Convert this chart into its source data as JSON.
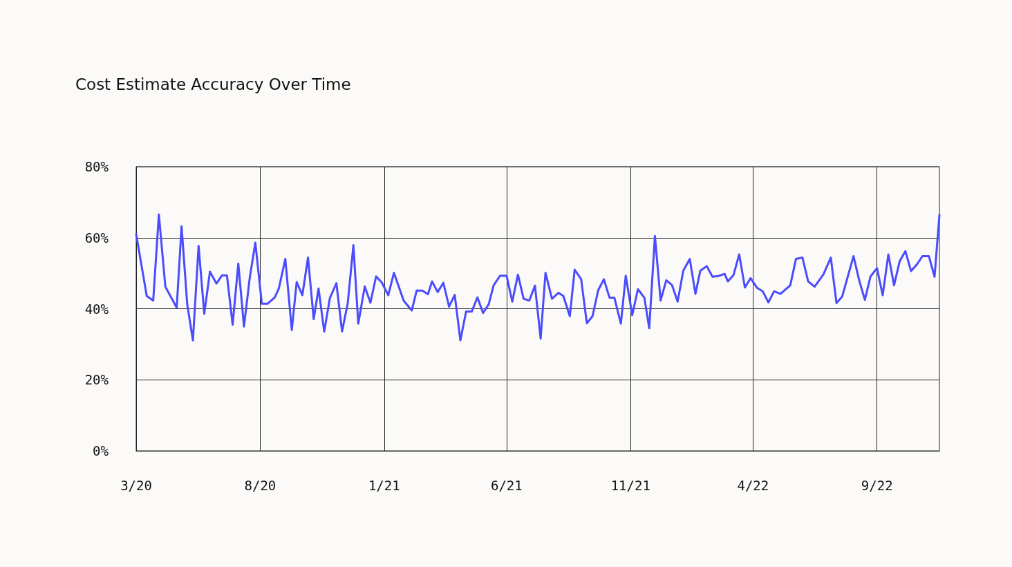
{
  "chart_data": {
    "type": "line",
    "title": "Cost Estimate Accuracy Over Time",
    "x": [
      "2020-03-01",
      "2020-03-14",
      "2020-03-22",
      "2020-03-29",
      "2020-04-06",
      "2020-04-20",
      "2020-04-26",
      "2020-05-03",
      "2020-05-10",
      "2020-05-17",
      "2020-05-24",
      "2020-05-31",
      "2020-06-08",
      "2020-06-15",
      "2020-06-21",
      "2020-06-28",
      "2020-07-05",
      "2020-07-12",
      "2020-07-19",
      "2020-07-26",
      "2020-08-03",
      "2020-08-10",
      "2020-08-19",
      "2020-08-24",
      "2020-09-01",
      "2020-09-09",
      "2020-09-15",
      "2020-09-22",
      "2020-09-29",
      "2020-10-06",
      "2020-10-12",
      "2020-10-19",
      "2020-10-26",
      "2020-11-03",
      "2020-11-10",
      "2020-11-17",
      "2020-11-24",
      "2020-11-30",
      "2020-12-08",
      "2020-12-15",
      "2020-12-22",
      "2020-12-29",
      "2021-01-06",
      "2021-01-13",
      "2021-01-25",
      "2021-02-04",
      "2021-02-10",
      "2021-02-17",
      "2021-02-24",
      "2021-03-01",
      "2021-03-08",
      "2021-03-15",
      "2021-03-22",
      "2021-03-29",
      "2021-04-05",
      "2021-04-12",
      "2021-04-19",
      "2021-04-26",
      "2021-05-03",
      "2021-05-10",
      "2021-05-16",
      "2021-05-24",
      "2021-06-01",
      "2021-06-08",
      "2021-06-15",
      "2021-06-22",
      "2021-06-29",
      "2021-07-06",
      "2021-07-13",
      "2021-07-19",
      "2021-07-27",
      "2021-08-04",
      "2021-08-10",
      "2021-08-18",
      "2021-08-24",
      "2021-09-01",
      "2021-09-08",
      "2021-09-15",
      "2021-09-22",
      "2021-09-29",
      "2021-10-06",
      "2021-10-12",
      "2021-10-20",
      "2021-10-26",
      "2021-11-03",
      "2021-11-10",
      "2021-11-18",
      "2021-11-24",
      "2021-12-01",
      "2021-12-08",
      "2021-12-15",
      "2021-12-22",
      "2021-12-29",
      "2022-01-05",
      "2022-01-13",
      "2022-01-20",
      "2022-01-26",
      "2022-02-03",
      "2022-02-10",
      "2022-02-17",
      "2022-02-25",
      "2022-03-01",
      "2022-03-08",
      "2022-03-15",
      "2022-03-22",
      "2022-03-29",
      "2022-04-06",
      "2022-04-13",
      "2022-04-20",
      "2022-04-27",
      "2022-05-05",
      "2022-05-17",
      "2022-05-24",
      "2022-06-01",
      "2022-06-08",
      "2022-06-16",
      "2022-06-27",
      "2022-07-06",
      "2022-07-13",
      "2022-07-20",
      "2022-08-03",
      "2022-08-10",
      "2022-08-17",
      "2022-08-24",
      "2022-09-01",
      "2022-09-08",
      "2022-09-15",
      "2022-09-22",
      "2022-09-29",
      "2022-10-06",
      "2022-10-13",
      "2022-10-21",
      "2022-10-27",
      "2022-11-04",
      "2022-11-11",
      "2022-11-17"
    ],
    "series": [
      {
        "color": "#4b4bff",
        "values": [
          61.0,
          43.6,
          42.3,
          66.5,
          46.2,
          40.3,
          63.2,
          41.2,
          31.1,
          57.7,
          38.6,
          50.4,
          47.1,
          49.4,
          49.4,
          35.5,
          52.7,
          35.0,
          48.5,
          58.6,
          41.4,
          41.4,
          43.2,
          45.7,
          54.0,
          34.0,
          47.5,
          43.8,
          54.4,
          37.1,
          45.7,
          33.6,
          43.0,
          47.2,
          33.6,
          41.5,
          57.9,
          35.8,
          46.3,
          41.7,
          49.1,
          47.4,
          43.8,
          50.1,
          42.3,
          39.5,
          45.1,
          45.1,
          44.1,
          47.7,
          44.7,
          47.3,
          40.6,
          43.9,
          31.1,
          39.2,
          39.2,
          43.2,
          38.8,
          41.3,
          46.6,
          49.3,
          49.3,
          42.0,
          49.6,
          42.8,
          42.3,
          46.5,
          31.6,
          50.1,
          42.8,
          44.5,
          43.6,
          37.9,
          51.0,
          48.3,
          35.9,
          37.9,
          45.2,
          48.3,
          43.1,
          43.1,
          35.8,
          49.3,
          38.2,
          45.5,
          43.1,
          34.5,
          60.5,
          42.3,
          48.0,
          46.7,
          42.0,
          50.7,
          54.0,
          44.2,
          50.7,
          52.0,
          49.0,
          49.2,
          49.8,
          47.7,
          49.5,
          55.3,
          46.0,
          48.6,
          45.9,
          44.9,
          41.8,
          44.9,
          44.2,
          46.6,
          54.0,
          54.4,
          47.7,
          46.2,
          49.7,
          54.4,
          41.6,
          43.4,
          54.8,
          48.0,
          42.5,
          49.1,
          51.4,
          43.8,
          55.3,
          46.6,
          53.4,
          56.2,
          50.6,
          52.7,
          54.8,
          54.8,
          49.0,
          66.4
        ]
      }
    ],
    "xlim": [
      "2020-03-01",
      "2022-11-17"
    ],
    "xticks": [
      {
        "value": "2020-03-01",
        "label": "3/20"
      },
      {
        "value": "2020-08-01",
        "label": "8/20"
      },
      {
        "value": "2021-01-01",
        "label": "1/21"
      },
      {
        "value": "2021-06-01",
        "label": "6/21"
      },
      {
        "value": "2021-11-01",
        "label": "11/21"
      },
      {
        "value": "2022-04-01",
        "label": "4/22"
      },
      {
        "value": "2022-09-01",
        "label": "9/22"
      }
    ],
    "ylim": [
      0,
      80
    ],
    "yticks": [
      {
        "value": 0,
        "label": "0%"
      },
      {
        "value": 20,
        "label": "20%"
      },
      {
        "value": 40,
        "label": "40%"
      },
      {
        "value": 60,
        "label": "60%"
      },
      {
        "value": 80,
        "label": "80%"
      }
    ],
    "grid": true,
    "marker": "none",
    "line_style": "solid"
  }
}
